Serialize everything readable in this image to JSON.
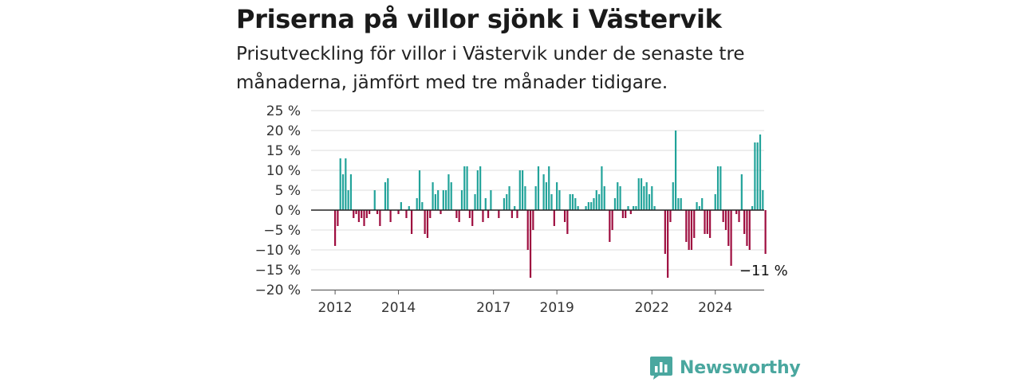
{
  "title": "Priserna på villor sjönk i Västervik",
  "subtitle": "Prisutveckling för villor i Västervik under de senaste tre månaderna, jämfört med tre månader tidigare.",
  "brand": "Newsworthy",
  "colors": {
    "positive": "#22a39a",
    "negative": "#9e0d3f",
    "grid": "#dddddd",
    "zero": "#222222",
    "brand": "#4aa79f"
  },
  "chart_data": {
    "type": "bar",
    "x_start": "2012-01",
    "x_interval": "month",
    "x_ticks": [
      "2012",
      "2014",
      "2017",
      "2019",
      "2022",
      "2024"
    ],
    "y_ticks": [
      "25 %",
      "20 %",
      "15 %",
      "10 %",
      "5 %",
      "0 %",
      "−5 %",
      "−10 %",
      "−15 %",
      "−20 %"
    ],
    "ylim": [
      -20,
      25
    ],
    "ylabel": "",
    "xlabel": "",
    "grid": true,
    "last_label": "−11 %",
    "values": [
      -9,
      -4,
      13,
      9,
      13,
      5,
      9,
      -2,
      -1,
      -3,
      -2,
      -4,
      -2,
      -1,
      0,
      5,
      -1,
      -4,
      0,
      7,
      8,
      -3,
      0,
      0,
      -1,
      2,
      0,
      -2,
      1,
      -6,
      0,
      3,
      10,
      2,
      -6,
      -7,
      -2,
      7,
      4,
      5,
      -1,
      5,
      5,
      9,
      7,
      0,
      -2,
      -3,
      5,
      11,
      11,
      -2,
      -4,
      4,
      10,
      11,
      -3,
      3,
      -2,
      5,
      0,
      0,
      -2,
      0,
      3,
      4,
      6,
      -2,
      1,
      -2,
      10,
      10,
      6,
      -10,
      -17,
      -5,
      6,
      11,
      0,
      9,
      7,
      11,
      4,
      -4,
      7,
      5,
      0,
      -3,
      -6,
      4,
      4,
      3,
      1,
      0,
      0,
      1,
      2,
      2,
      3,
      5,
      4,
      11,
      6,
      0,
      -8,
      -5,
      3,
      7,
      6,
      -2,
      -2,
      1,
      -1,
      1,
      1,
      8,
      8,
      6,
      7,
      4,
      6,
      1,
      0,
      0,
      0,
      -11,
      -17,
      -3,
      7,
      20,
      3,
      3,
      0,
      -8,
      -10,
      -10,
      -7,
      2,
      1,
      3,
      -6,
      -6,
      -7,
      0,
      4,
      11,
      11,
      -3,
      -5,
      -9,
      -14,
      0,
      -1,
      -3,
      9,
      -6,
      -9,
      -10,
      1,
      17,
      17,
      19,
      5,
      -11
    ]
  }
}
